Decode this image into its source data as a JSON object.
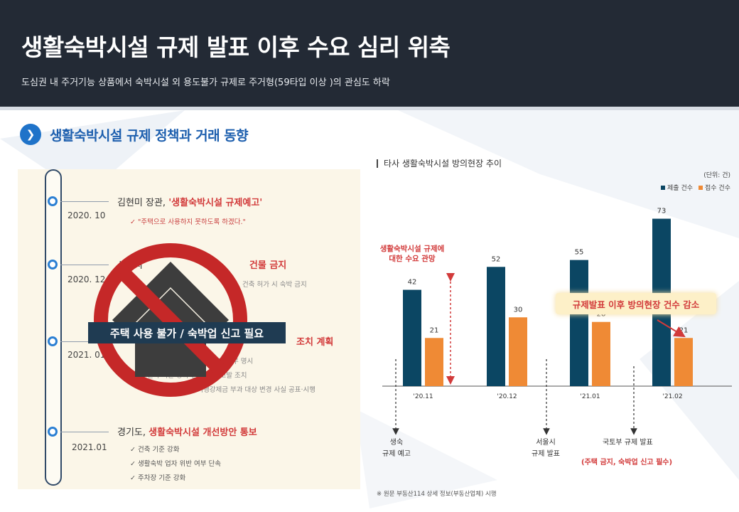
{
  "header": {
    "title": "생활숙박시설 규제 발표 이후 수요 심리 위축",
    "subtitle": "도심권 내 주거기능 상품에서 숙박시설 외 용도불가 규제로 주거형(59타입 이상 )의 관심도 하락"
  },
  "section": {
    "title": "생활숙박시설 규제 정책과 거래 동향"
  },
  "timeline": [
    {
      "date": "2020. 10",
      "head_pre": "김현미 장관, ",
      "head_hl": "'생활숙박시설 규제예고'",
      "head_post": "",
      "details": [
        "✓ \"주택으로 사용하지 못하도록 하겠다.\""
      ]
    },
    {
      "date": "2020. 12",
      "head_pre": "서울시",
      "head_hl": "건물 금지",
      "head_post": "",
      "details": [
        "건축 허가 시 숙박 금지"
      ]
    },
    {
      "date": "2021. 01",
      "head_pre": "",
      "head_hl": "조치 계획",
      "head_post": "",
      "details": [
        "주택 사용 불가  숙박업 신고 의무 명시",
        "건축 기준 강화  건축 경우 고발 조치",
        "주택 용도 사용은 이행강제금 부과 대상 변경 사실 공표·시행"
      ]
    },
    {
      "date": "2021.01",
      "head_pre": "경기도, ",
      "head_hl": "생활숙박시설 개선방안 통보",
      "head_post": "",
      "details": [
        "✓ 건축 기준 강화",
        "✓ 생활숙박 업자 위반 여부 단속",
        "✓ 주차장 기준 강화"
      ]
    }
  ],
  "overlay": {
    "label": "주택 사용 불가 / 숙박업 신고 필요"
  },
  "chart": {
    "title": "타사 생활숙박시설 방의현장 추이",
    "unit": "(단위: 건)",
    "note_left": "생활숙박시설 규제에 대한 수요 관망",
    "callout": "규제발표 이후 방의현장 건수 감소",
    "bottom_labels": [
      {
        "line1": "생숙",
        "line2": "규제 예고"
      },
      {
        "line1": "서울시",
        "line2": "규제 발표"
      },
      {
        "line1": "국토부 규제 발표",
        "line2": "(주택 금지, 숙박업 신고 필수)"
      }
    ]
  },
  "source": "※ 원문 부동산114 상세 정보(부동산업체) 시행",
  "chart_data": {
    "type": "bar",
    "categories": [
      "'20.11",
      "'20.12",
      "'21.01",
      "'21.02"
    ],
    "series": [
      {
        "name": "제출 건수",
        "values": [
          42,
          52,
          55,
          73
        ]
      },
      {
        "name": "접수 건수",
        "values": [
          21,
          30,
          28,
          21
        ]
      }
    ],
    "ylim": [
      0,
      80
    ],
    "legend": "top-right",
    "colors": [
      "#0b4663",
      "#ef8a35"
    ]
  }
}
